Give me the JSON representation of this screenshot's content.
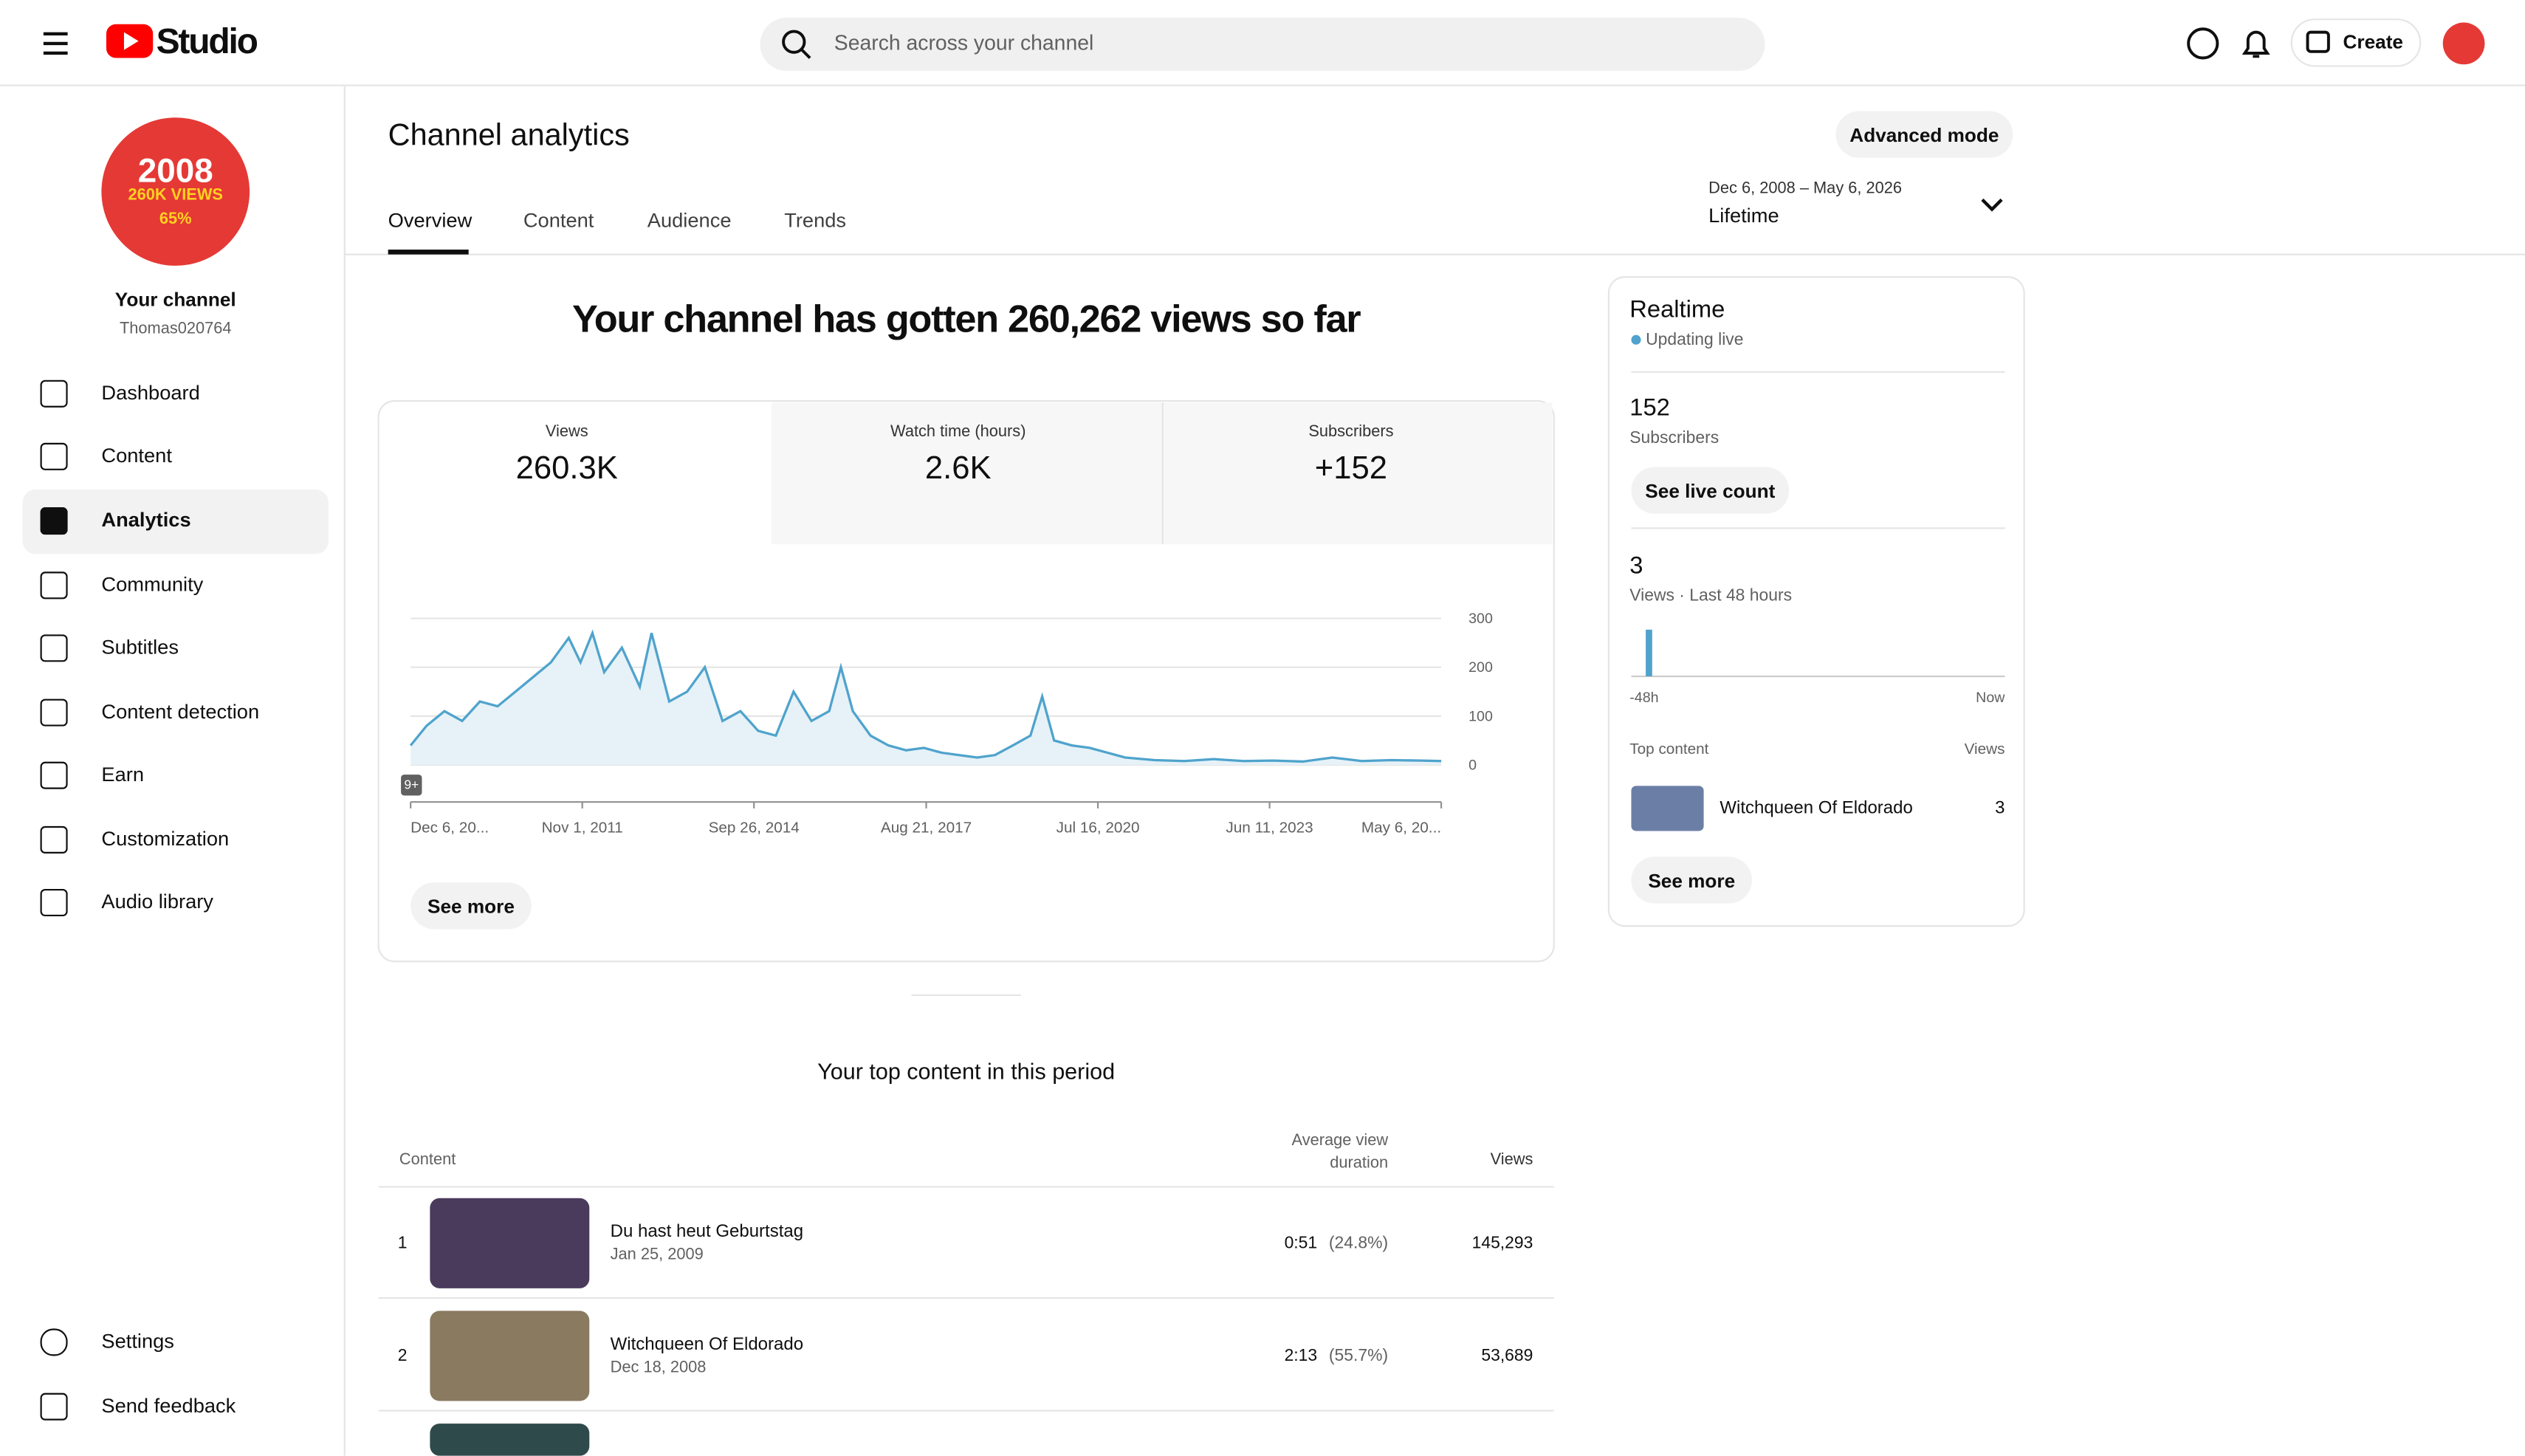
{
  "header": {
    "logo": "Studio",
    "search_placeholder": "Search across your channel",
    "create": "Create"
  },
  "sidebar": {
    "avatar_lines": [
      "2008",
      "260K VIEWS",
      "65%"
    ],
    "channel_label": "Your channel",
    "channel_handle": "Thomas020764",
    "nav": [
      "Dashboard",
      "Content",
      "Analytics",
      "Community",
      "Subtitles",
      "Content detection",
      "Earn",
      "Customization",
      "Audio library"
    ],
    "bottom": [
      "Settings",
      "Send feedback"
    ]
  },
  "page": {
    "title": "Channel analytics",
    "advanced": "Advanced mode",
    "tabs": [
      "Overview",
      "Content",
      "Audience",
      "Trends"
    ],
    "date_range": "Dec 6, 2008 – May 6, 2026",
    "period": "Lifetime"
  },
  "overview": {
    "headline": "Your channel has gotten 260,262 views so far",
    "metrics": [
      {
        "label": "Views",
        "value": "260.3K"
      },
      {
        "label": "Watch time (hours)",
        "value": "2.6K"
      },
      {
        "label": "Subscribers",
        "value": "+152"
      }
    ],
    "badge": "9+",
    "see_more": "See more"
  },
  "chart_data": {
    "type": "line",
    "color": "#4fa3cc",
    "x": [
      2008.93,
      2009.2,
      2009.5,
      2009.8,
      2010.1,
      2010.4,
      2010.7,
      2011.0,
      2011.3,
      2011.6,
      2011.8,
      2012.0,
      2012.2,
      2012.5,
      2012.8,
      2013.0,
      2013.3,
      2013.6,
      2013.9,
      2014.2,
      2014.5,
      2014.8,
      2015.1,
      2015.4,
      2015.7,
      2016.0,
      2016.2,
      2016.4,
      2016.7,
      2017.0,
      2017.3,
      2017.6,
      2017.9,
      2018.2,
      2018.5,
      2018.8,
      2019.1,
      2019.4,
      2019.6,
      2019.8,
      2020.1,
      2020.4,
      2020.7,
      2021.0,
      2021.5,
      2022.0,
      2022.5,
      2023.0,
      2023.5,
      2024.0,
      2024.5,
      2025.0,
      2025.5,
      2026.0,
      2026.34
    ],
    "values": [
      40,
      80,
      110,
      90,
      130,
      120,
      150,
      180,
      210,
      260,
      210,
      270,
      190,
      240,
      160,
      270,
      130,
      150,
      200,
      90,
      110,
      70,
      60,
      150,
      90,
      110,
      200,
      110,
      60,
      40,
      30,
      35,
      25,
      20,
      15,
      20,
      40,
      60,
      140,
      50,
      40,
      35,
      25,
      15,
      10,
      8,
      12,
      8,
      9,
      7,
      15,
      8,
      10,
      9,
      8
    ],
    "xlim": [
      2008.93,
      2026.34
    ],
    "ylim": [
      0,
      300
    ],
    "yticks": [
      0,
      100,
      200,
      300
    ],
    "xticks": [
      {
        "value": 2008.93,
        "label": "Dec 6, 20..."
      },
      {
        "value": 2011.83,
        "label": "Nov 1, 2011"
      },
      {
        "value": 2014.73,
        "label": "Sep 26, 2014"
      },
      {
        "value": 2017.64,
        "label": "Aug 21, 2017"
      },
      {
        "value": 2020.54,
        "label": "Jul 16, 2020"
      },
      {
        "value": 2023.44,
        "label": "Jun 11, 2023"
      },
      {
        "value": 2026.34,
        "label": "May 6, 20..."
      }
    ],
    "grid": true
  },
  "realtime": {
    "title": "Realtime",
    "status": "Updating live",
    "subscribers": "152",
    "subscribers_label": "Subscribers",
    "see_live": "See live count",
    "views": "3",
    "views_label": "Views · Last 48 hours",
    "axis_start": "-48h",
    "axis_end": "Now",
    "top_label": "Top content",
    "views_col": "Views",
    "top_item": {
      "title": "Witchqueen Of Eldorado",
      "views": "3"
    },
    "see_more": "See more"
  },
  "top_content": {
    "title": "Your top content in this period",
    "columns": [
      "Content",
      "Average view duration",
      "Views"
    ],
    "rows": [
      [
        "1",
        "Du hast heut Geburtstag",
        "Jan 25, 2009",
        "0:51",
        "(24.8%)",
        "145,293"
      ],
      [
        "2",
        "Witchqueen Of Eldorado",
        "Dec 18, 2008",
        "2:13",
        "(55.7%)",
        "53,689"
      ]
    ]
  }
}
